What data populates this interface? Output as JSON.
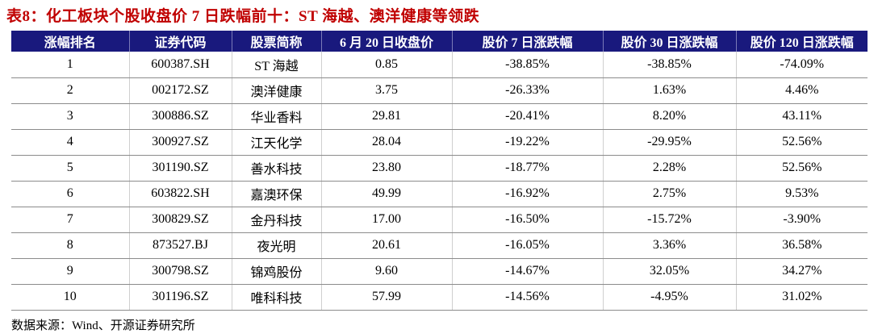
{
  "title": "表8：化工板块个股收盘价 7 日跌幅前十：ST 海越、澳洋健康等领跌",
  "table": {
    "headers": [
      "涨幅排名",
      "证券代码",
      "股票简称",
      "6 月 20 日收盘价",
      "股价 7 日涨跌幅",
      "股价 30 日涨跌幅",
      "股价 120 日涨跌幅"
    ],
    "rows": [
      [
        "1",
        "600387.SH",
        "ST 海越",
        "0.85",
        "-38.85%",
        "-38.85%",
        "-74.09%"
      ],
      [
        "2",
        "002172.SZ",
        "澳洋健康",
        "3.75",
        "-26.33%",
        "1.63%",
        "4.46%"
      ],
      [
        "3",
        "300886.SZ",
        "华业香料",
        "29.81",
        "-20.41%",
        "8.20%",
        "43.11%"
      ],
      [
        "4",
        "300927.SZ",
        "江天化学",
        "28.04",
        "-19.22%",
        "-29.95%",
        "52.56%"
      ],
      [
        "5",
        "301190.SZ",
        "善水科技",
        "23.80",
        "-18.77%",
        "2.28%",
        "52.56%"
      ],
      [
        "6",
        "603822.SH",
        "嘉澳环保",
        "49.99",
        "-16.92%",
        "2.75%",
        "9.53%"
      ],
      [
        "7",
        "300829.SZ",
        "金丹科技",
        "17.00",
        "-16.50%",
        "-15.72%",
        "-3.90%"
      ],
      [
        "8",
        "873527.BJ",
        "夜光明",
        "20.61",
        "-16.05%",
        "3.36%",
        "36.58%"
      ],
      [
        "9",
        "300798.SZ",
        "锦鸡股份",
        "9.60",
        "-14.67%",
        "32.05%",
        "34.27%"
      ],
      [
        "10",
        "301196.SZ",
        "唯科科技",
        "57.99",
        "-14.56%",
        "-4.95%",
        "31.02%"
      ]
    ]
  },
  "footer": "数据来源：Wind、开源证券研究所",
  "colors": {
    "title": "#C00000",
    "header_bg": "#19197D",
    "header_text": "#FFFFFF",
    "row_divider": "#8C8C8C",
    "column_divider": "#CFCFCF"
  }
}
